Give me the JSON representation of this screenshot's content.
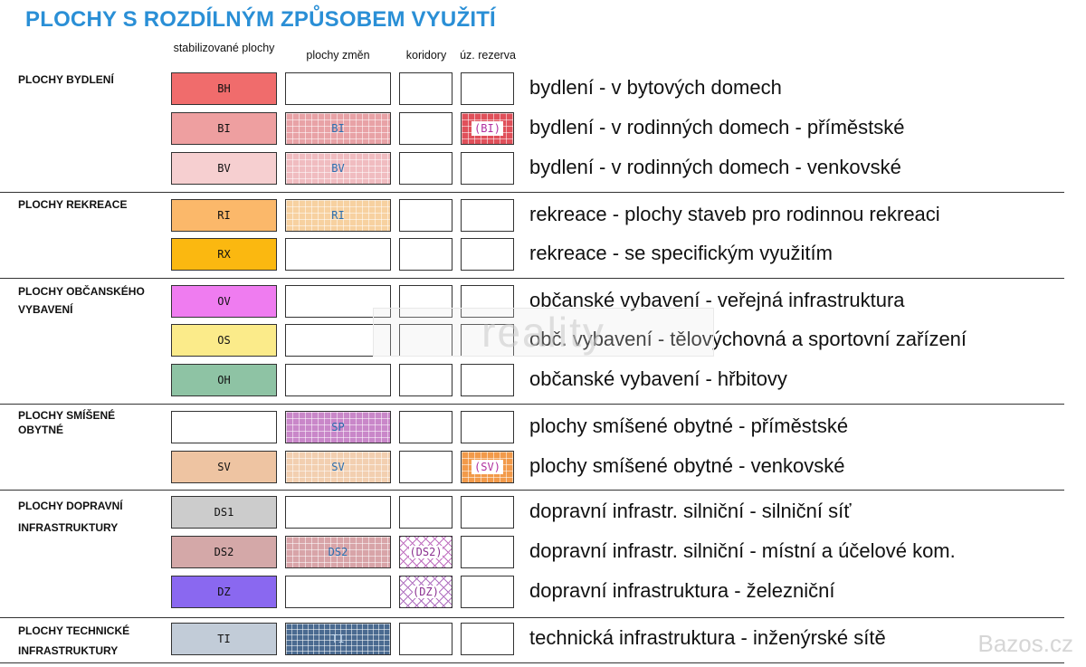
{
  "title": "PLOCHY S ROZDÍLNÝM ZPŮSOBEM VYUŽITÍ",
  "columns": [
    "stabilizované plochy",
    "plochy změn",
    "koridory",
    "úz. rezerva"
  ],
  "groups": [
    {
      "label_lines": [
        "PLOCHY BYDLENÍ"
      ]
    },
    {
      "label_lines": [
        "PLOCHY REKREACE"
      ]
    },
    {
      "label_lines": [
        "PLOCHY OBČANSKÉHO",
        "VYBAVENÍ"
      ]
    },
    {
      "label_lines": [
        "PLOCHY SMÍŠENÉ",
        "OBYTNÉ"
      ]
    },
    {
      "label_lines": [
        "PLOCHY DOPRAVNÍ",
        "INFRASTRUKTURY"
      ]
    },
    {
      "label_lines": [
        "PLOCHY TECHNICKÉ",
        "INFRASTRUKTURY"
      ]
    }
  ],
  "rows": [
    {
      "stab": "BH",
      "stab_color": "#f06c6c",
      "change": "",
      "corridor": "",
      "reserve": "",
      "desc": "bydlení - v bytových domech"
    },
    {
      "stab": "BI",
      "stab_color": "#ee9fa0",
      "change": "BI",
      "change_color": "#e8a2a6",
      "change_text_color": "#2a6fb0",
      "corridor": "",
      "reserve": "(BI)",
      "reserve_color": "#e0505a",
      "reserve_text_color": "#b0309f",
      "desc": "bydlení - v rodinných domech - příměstské"
    },
    {
      "stab": "BV",
      "stab_color": "#f6cfd0",
      "change": "BV",
      "change_color": "#f0bcc0",
      "change_text_color": "#2a6fb0",
      "corridor": "",
      "reserve": "",
      "desc": "bydlení - v rodinných domech - venkovské"
    },
    {
      "stab": "RI",
      "stab_color": "#fbb86a",
      "change": "RI",
      "change_color": "#f7d1a0",
      "change_text_color": "#2a6fb0",
      "corridor": "",
      "reserve": "",
      "desc": "rekreace - plochy staveb pro rodinnou rekreaci"
    },
    {
      "stab": "RX",
      "stab_color": "#fbb810",
      "change": "",
      "corridor": "",
      "reserve": "",
      "desc": "rekreace - se specifickým využitím"
    },
    {
      "stab": "OV",
      "stab_color": "#ef7cf0",
      "change": "",
      "corridor": "",
      "reserve": "",
      "desc": "občanské vybavení - veřejná infrastruktura"
    },
    {
      "stab": "OS",
      "stab_color": "#fbeb8a",
      "change": "",
      "corridor": "",
      "reserve": "",
      "desc": "obč. vybavení - tělovýchovná a sportovní zařízení"
    },
    {
      "stab": "OH",
      "stab_color": "#8ec3a4",
      "change": "",
      "corridor": "",
      "reserve": "",
      "desc": "občanské vybavení - hřbitovy"
    },
    {
      "stab": "",
      "stab_color": "#ffffff",
      "change": "SP",
      "change_color": "#c987c9",
      "change_text_color": "#2a6fb0",
      "corridor": "",
      "reserve": "",
      "desc": "plochy smíšené obytné - příměstské"
    },
    {
      "stab": "SV",
      "stab_color": "#eec4a2",
      "change": "SV",
      "change_color": "#f2cfb0",
      "change_text_color": "#2a6fb0",
      "corridor": "",
      "reserve": "(SV)",
      "reserve_color": "#f29a4a",
      "reserve_text_color": "#b0309f",
      "desc": "plochy smíšené obytné - venkovské"
    },
    {
      "stab": "DS1",
      "stab_color": "#cccccc",
      "change": "",
      "corridor": "",
      "reserve": "",
      "desc": "dopravní infrastr. silniční - silniční síť"
    },
    {
      "stab": "DS2",
      "stab_color": "#d4a8a8",
      "change": "DS2",
      "change_color": "#d8a4a8",
      "change_text_color": "#2a6fb0",
      "corridor": "(DS2)",
      "corridor_color": "#c070c0",
      "corridor_text_color": "#8a3090",
      "reserve": "",
      "desc": "dopravní infrastr. silniční - místní a účelové kom."
    },
    {
      "stab": "DZ",
      "stab_color": "#8a68f0",
      "change": "",
      "corridor": "(DZ)",
      "corridor_color": "#b070c0",
      "corridor_text_color": "#8a3090",
      "reserve": "",
      "desc": "dopravní infrastruktura - železniční"
    },
    {
      "stab": "TI",
      "stab_color": "#c2ccd8",
      "change": "TI",
      "change_color": "#4a6a90",
      "change_text_color": "#c8dcf0",
      "corridor": "",
      "reserve": "",
      "desc": "technická infrastruktura - inženýrské sítě"
    }
  ],
  "watermark": "Bazos.cz",
  "watermark_center": "reality"
}
